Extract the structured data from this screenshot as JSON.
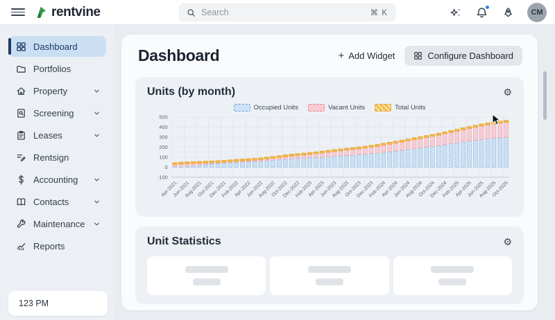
{
  "topbar": {
    "logo_text": "rentvine",
    "brand_green": "#2f9e44",
    "brand_green_dark": "#1b7a33",
    "search_placeholder": "Search",
    "search_shortcut": "⌘ K",
    "avatar_initials": "CM",
    "notification_color": "#2f80ed"
  },
  "sidebar": {
    "items": [
      {
        "label": "Dashboard",
        "icon": "dashboard-grid-icon",
        "active": true,
        "has_chevron": false
      },
      {
        "label": "Portfolios",
        "icon": "folder-icon",
        "active": false,
        "has_chevron": false
      },
      {
        "label": "Property",
        "icon": "house-icon",
        "active": false,
        "has_chevron": true
      },
      {
        "label": "Screening",
        "icon": "document-search-icon",
        "active": false,
        "has_chevron": true
      },
      {
        "label": "Leases",
        "icon": "clipboard-icon",
        "active": false,
        "has_chevron": true
      },
      {
        "label": "Rentsign",
        "icon": "signature-icon",
        "active": false,
        "has_chevron": false
      },
      {
        "label": "Accounting",
        "icon": "dollar-icon",
        "active": false,
        "has_chevron": true
      },
      {
        "label": "Contacts",
        "icon": "book-icon",
        "active": false,
        "has_chevron": true
      },
      {
        "label": "Maintenance",
        "icon": "wrench-icon",
        "active": false,
        "has_chevron": true
      },
      {
        "label": "Reports",
        "icon": "chart-line-icon",
        "active": false,
        "has_chevron": false
      }
    ],
    "time_label": "123 PM",
    "active_bg": "#cbdff4",
    "active_accent": "#1d3c63"
  },
  "main": {
    "page_title": "Dashboard",
    "add_widget_label": "Add Widget",
    "configure_label": "Configure Dashboard",
    "units_widget_title": "Units (by month)",
    "stats_widget_title": "Unit Statistics",
    "stats_cards_count": 3
  },
  "chart_data": {
    "type": "bar",
    "stacked": true,
    "title": "Units (by month)",
    "legend_position": "top",
    "grid": true,
    "ylim": [
      -100,
      500
    ],
    "y_ticks": [
      500,
      400,
      300,
      200,
      100,
      0,
      -100
    ],
    "x_tick_step": 2,
    "months": [
      "Apr-2021",
      "May-2021",
      "Jun-2021",
      "Jul-2021",
      "Aug-2021",
      "Sep-2021",
      "Oct-2021",
      "Nov-2021",
      "Dec-2021",
      "Jan-2022",
      "Feb-2022",
      "Mar-2022",
      "Apr-2022",
      "May-2022",
      "Jun-2022",
      "Jul-2022",
      "Aug-2022",
      "Sep-2022",
      "Oct-2022",
      "Nov-2022",
      "Dec-2022",
      "Jan-2023",
      "Feb-2023",
      "Mar-2023",
      "Apr-2023",
      "May-2023",
      "Jun-2023",
      "Jul-2023",
      "Aug-2023",
      "Sep-2023",
      "Oct-2023",
      "Nov-2023",
      "Dec-2023",
      "Jan-2024",
      "Feb-2024",
      "Mar-2024",
      "Apr-2024",
      "May-2024",
      "Jun-2024",
      "Jul-2024",
      "Aug-2024",
      "Sep-2024",
      "Oct-2024",
      "Nov-2024",
      "Dec-2024",
      "Jan-2025",
      "Feb-2025",
      "Mar-2025",
      "Apr-2025",
      "May-2025",
      "Jun-2025",
      "Jul-2025",
      "Aug-2025",
      "Sep-2025",
      "Oct-2025"
    ],
    "series": [
      {
        "name": "Occupied Units",
        "fill": "#cae0f4",
        "border": "#5f9fd6",
        "values": [
          5,
          8,
          10,
          15,
          20,
          30,
          35,
          38,
          42,
          45,
          50,
          52,
          55,
          58,
          60,
          65,
          70,
          75,
          80,
          85,
          88,
          90,
          95,
          98,
          100,
          105,
          108,
          112,
          116,
          120,
          125,
          130,
          135,
          140,
          148,
          155,
          162,
          170,
          178,
          185,
          192,
          200,
          208,
          216,
          225,
          234,
          243,
          252,
          260,
          268,
          275,
          282,
          288,
          293,
          298
        ]
      },
      {
        "name": "Vacant Units",
        "fill": "#f8ccd4",
        "border": "#e57a89",
        "values": [
          25,
          27,
          28,
          25,
          22,
          15,
          13,
          12,
          12,
          13,
          13,
          14,
          15,
          16,
          18,
          20,
          22,
          25,
          28,
          30,
          32,
          35,
          37,
          40,
          45,
          48,
          52,
          55,
          58,
          60,
          62,
          65,
          68,
          72,
          75,
          78,
          82,
          85,
          88,
          92,
          96,
          100,
          104,
          108,
          112,
          116,
          120,
          125,
          130,
          135,
          140,
          144,
          148,
          151,
          154
        ]
      },
      {
        "name": "Total Units",
        "fill": "#f5b843",
        "border": "#dd9626",
        "values": [
          30,
          35,
          38,
          40,
          42,
          45,
          48,
          50,
          54,
          58,
          63,
          66,
          70,
          74,
          78,
          85,
          92,
          100,
          108,
          115,
          120,
          125,
          132,
          138,
          145,
          153,
          160,
          167,
          174,
          180,
          187,
          195,
          203,
          212,
          223,
          233,
          244,
          255,
          266,
          277,
          288,
          300,
          312,
          324,
          337,
          350,
          363,
          377,
          390,
          403,
          415,
          426,
          436,
          444,
          452
        ]
      }
    ]
  }
}
